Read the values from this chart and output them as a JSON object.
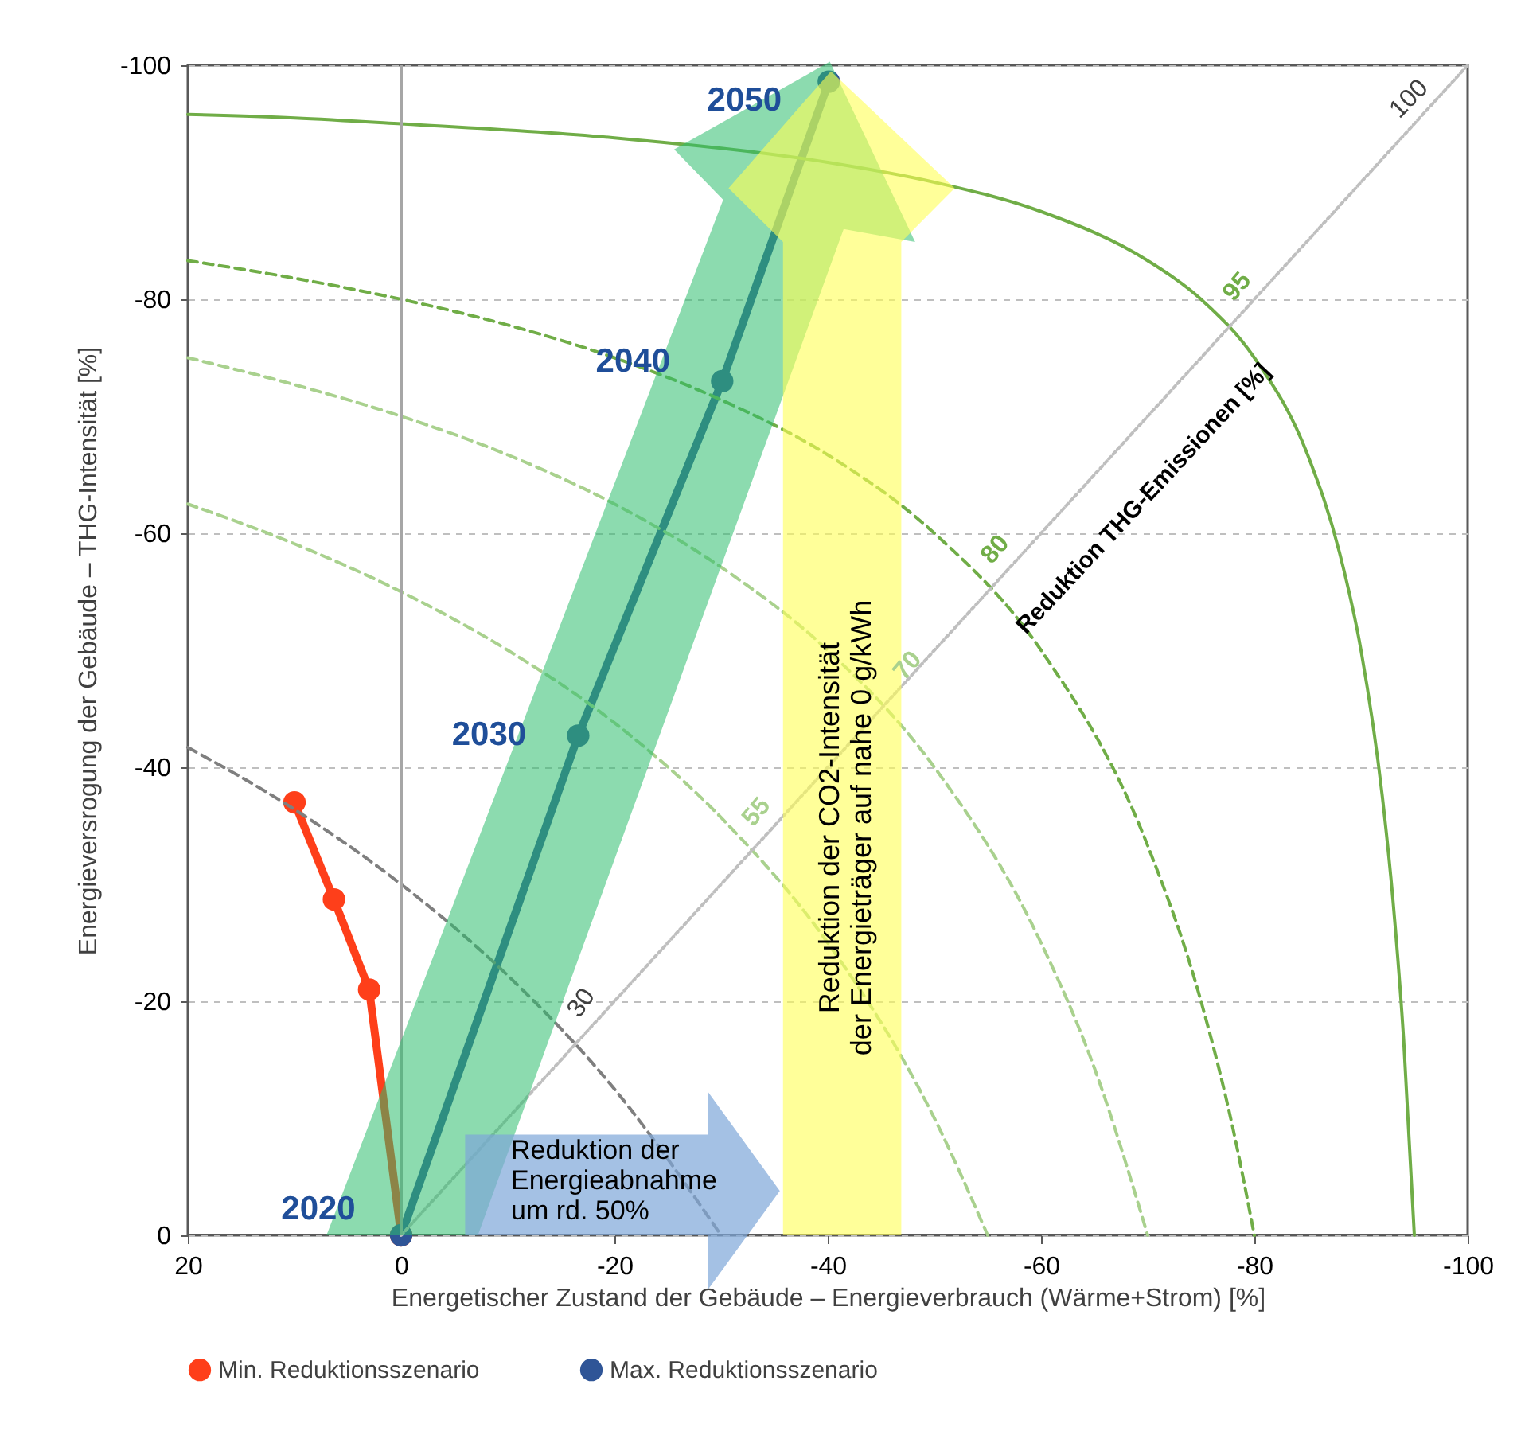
{
  "chart_data": {
    "type": "line",
    "xlabel": "Energetischer Zustand der Gebäude – Energieverbrauch (Wärme+Strom) [%]",
    "ylabel": "Energieversrogung der Gebäude – THG-Intensität [%]",
    "xlim": [
      20,
      -100
    ],
    "xticks": [
      20,
      0,
      -20,
      -40,
      -60,
      -80,
      -100
    ],
    "ylim": [
      0,
      -100
    ],
    "yticks": [
      0,
      -20,
      -40,
      -60,
      -80,
      -100
    ],
    "grid": "y",
    "legend": "bottom",
    "series": [
      {
        "name": "Min. Reduktionsszenario",
        "color": "#fe3f1a",
        "x": [
          0,
          3,
          6.3,
          10
        ],
        "values": [
          0,
          -21,
          -28.7,
          -37
        ],
        "marker": "circle",
        "line_style": "solid"
      },
      {
        "name": "Max. Reduktionsszenario",
        "color": "#2f5597",
        "x": [
          0,
          -16.6,
          -30.1,
          -40.1
        ],
        "values": [
          0,
          -42.7,
          -73,
          -98.6
        ],
        "marker": "circle",
        "line_style": "solid"
      },
      {
        "color": "#7f7f7f",
        "x": [
          20,
          10,
          0,
          -10,
          -20,
          -30
        ],
        "values": [
          -41.7,
          -36.4,
          -30,
          -22.2,
          -12.5,
          0
        ],
        "marker": "none",
        "line_style": "dashed"
      },
      {
        "color": "#a9d18e",
        "x": [
          20,
          10,
          0,
          -10,
          -20,
          -30,
          -40,
          -50,
          -55
        ],
        "values": [
          -62.5,
          -59.1,
          -55,
          -50,
          -43.8,
          -35.7,
          -25,
          -10,
          0
        ],
        "marker": "none",
        "line_style": "dashed"
      },
      {
        "color": "#a9d18e",
        "x": [
          20,
          10,
          0,
          -10,
          -20,
          -30,
          -40,
          -50,
          -60,
          -65,
          -70
        ],
        "values": [
          -75,
          -72.7,
          -70,
          -66.7,
          -62.5,
          -57.1,
          -50,
          -40,
          -25,
          -14.3,
          0
        ],
        "marker": "none",
        "line_style": "dashed"
      },
      {
        "color": "#70ad47",
        "x": [
          20,
          10,
          0,
          -10,
          -20,
          -30,
          -40,
          -50,
          -60,
          -70,
          -75,
          -78,
          -80
        ],
        "values": [
          -83.3,
          -81.8,
          -80,
          -77.8,
          -75,
          -71.4,
          -66.7,
          -60,
          -50,
          -33.3,
          -20,
          -9.1,
          0
        ],
        "marker": "none",
        "line_style": "dashed"
      },
      {
        "color": "#70ad47",
        "x": [
          20,
          10,
          0,
          -20,
          -40,
          -50,
          -60,
          -70,
          -75,
          -80,
          -85,
          -88,
          -90,
          -92,
          -93,
          -94,
          -95
        ],
        "values": [
          -95.8,
          -95.5,
          -95,
          -93.8,
          -91.7,
          -90,
          -87.5,
          -83.3,
          -80,
          -75,
          -66.7,
          -58.3,
          -50,
          -37.5,
          -28.6,
          -16.7,
          0
        ],
        "marker": "none",
        "line_style": "solid"
      },
      {
        "color": "#bfbfbf",
        "x": [
          0,
          -100
        ],
        "values": [
          0,
          -100
        ],
        "marker": "none",
        "line_style": "dotted"
      }
    ],
    "ref_lines": [
      {
        "axis": "x",
        "value": 0,
        "color": "#a6a6a6"
      }
    ],
    "annotations": [
      {
        "text": "2020",
        "x": 0,
        "y": 0
      },
      {
        "text": "2030",
        "x": -16.6,
        "y": -42.7
      },
      {
        "text": "2040",
        "x": -30.1,
        "y": -73
      },
      {
        "text": "2050",
        "x": -40.1,
        "y": -98.6
      },
      "30",
      "55",
      "70",
      "80",
      "95",
      "100",
      "Reduktion THG-Emissionen [%]",
      "Reduktion der CO2-Intensität\nder Energieträger auf nahe 0 g/kWh",
      "Reduktion der\nEnergieabnahme\num rd. 50%"
    ]
  }
}
